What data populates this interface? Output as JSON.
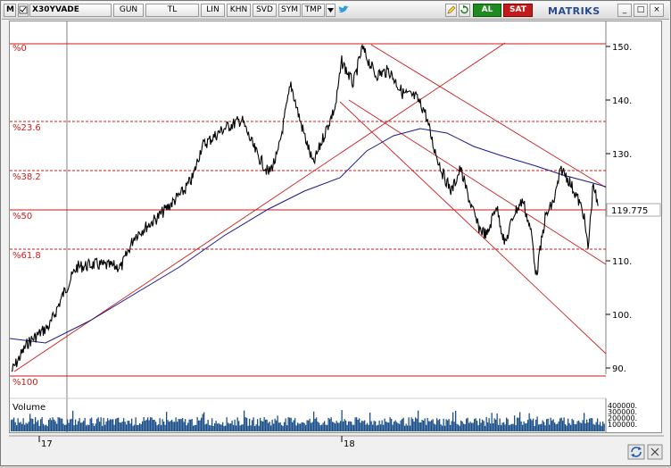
{
  "toolbar": {
    "m_label": "M",
    "symbol": "X30YVADE",
    "period": "GUN",
    "currency": "TL",
    "scale": "LIN",
    "khn": "KHN",
    "svd": "SVD",
    "sym": "SYM",
    "tmp": "TMP",
    "buy_label": "AL",
    "sell_label": "SAT",
    "brand": "MATRIKS",
    "window_buttons": [
      "_",
      "□",
      "×"
    ]
  },
  "chart": {
    "fib_labels": [
      "%0",
      "%23.6",
      "%38.2",
      "%50",
      "%61.8",
      "%100"
    ],
    "y_ticks": [
      "150.",
      "140.",
      "130.",
      "110.",
      "100.",
      "90."
    ],
    "last_price": "119.775",
    "volume_label": "Volume",
    "volume_ticks": [
      "400000.",
      "300000.",
      "200000.",
      "100000."
    ],
    "x_labels": [
      "17",
      "18"
    ],
    "colors": {
      "price": "#000000",
      "moving_average": "#1a1a8c",
      "trendlines": "#cc1a1a",
      "volume": "#1b4f8a",
      "last_price_box": "#ffffff"
    }
  }
}
